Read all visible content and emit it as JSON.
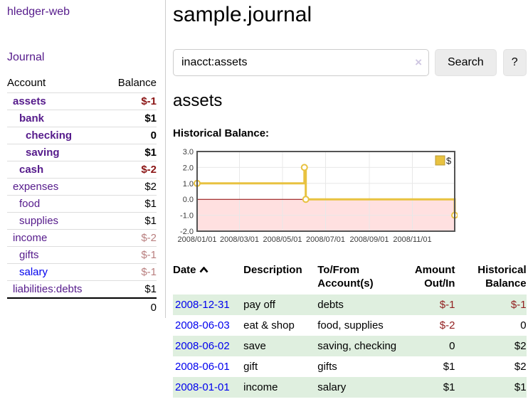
{
  "app": {
    "brand": "hledger-web"
  },
  "sidebar": {
    "nav_journal": "Journal",
    "table_headers": {
      "account": "Account",
      "balance": "Balance"
    },
    "accounts": [
      {
        "name": "assets",
        "balance": "$-1"
      },
      {
        "name": "bank",
        "balance": "$1"
      },
      {
        "name": "checking",
        "balance": "0"
      },
      {
        "name": "saving",
        "balance": "$1"
      },
      {
        "name": "cash",
        "balance": "$-2"
      },
      {
        "name": "expenses",
        "balance": "$2"
      },
      {
        "name": "food",
        "balance": "$1"
      },
      {
        "name": "supplies",
        "balance": "$1"
      },
      {
        "name": "income",
        "balance": "$-2"
      },
      {
        "name": "gifts",
        "balance": "$-1"
      },
      {
        "name": "salary",
        "balance": "$-1"
      },
      {
        "name": "liabilities:debts",
        "balance": "$1"
      }
    ],
    "total": "0"
  },
  "header": {
    "title": "sample.journal"
  },
  "search": {
    "value": "inacct:assets",
    "clear_icon": "×",
    "button_label": "Search",
    "help_label": "?"
  },
  "account_page": {
    "title": "assets",
    "chart_heading": "Historical Balance:"
  },
  "chart_data": {
    "type": "line",
    "style": "step-after",
    "title": "Historical Balance of assets",
    "series": [
      {
        "name": "$",
        "points": [
          [
            "2008-01-01",
            1
          ],
          [
            "2008-06-01",
            2
          ],
          [
            "2008-06-03",
            0
          ],
          [
            "2008-12-31",
            -1
          ]
        ]
      }
    ],
    "x_range": [
      "2008-01-01",
      "2008-12-31"
    ],
    "ylim": [
      -2,
      3
    ],
    "yticks": [
      "3.0",
      "2.0",
      "1.0",
      "0.0",
      "-1.0",
      "-2.0"
    ],
    "xticks": [
      "2008/01/01",
      "2008/03/01",
      "2008/05/01",
      "2008/07/01",
      "2008/09/01",
      "2008/11/01"
    ],
    "grid": true,
    "legend_position": "top-right",
    "colors": {
      "series": "#e8c240",
      "negative_fill": "rgba(255,0,0,0.12)",
      "zero_line": "#8b0000",
      "grid": "#e8e8e8",
      "border": "#545454"
    }
  },
  "register": {
    "headers": {
      "date": "Date",
      "description": "Description",
      "accounts": "To/From Account(s)",
      "amount": "Amount Out/In",
      "balance": "Historical Balance"
    },
    "sort_icon": "chevron-up",
    "rows": [
      {
        "date": "2008-12-31",
        "description": "pay off",
        "accounts": "debts",
        "amount": "$-1",
        "balance": "$-1"
      },
      {
        "date": "2008-06-03",
        "description": "eat & shop",
        "accounts": "food, supplies",
        "amount": "$-2",
        "balance": "0"
      },
      {
        "date": "2008-06-02",
        "description": "save",
        "accounts": "saving, checking",
        "amount": "0",
        "balance": "$2"
      },
      {
        "date": "2008-06-01",
        "description": "gift",
        "accounts": "gifts",
        "amount": "$1",
        "balance": "$2"
      },
      {
        "date": "2008-01-01",
        "description": "income",
        "accounts": "salary",
        "amount": "$1",
        "balance": "$1"
      }
    ]
  }
}
